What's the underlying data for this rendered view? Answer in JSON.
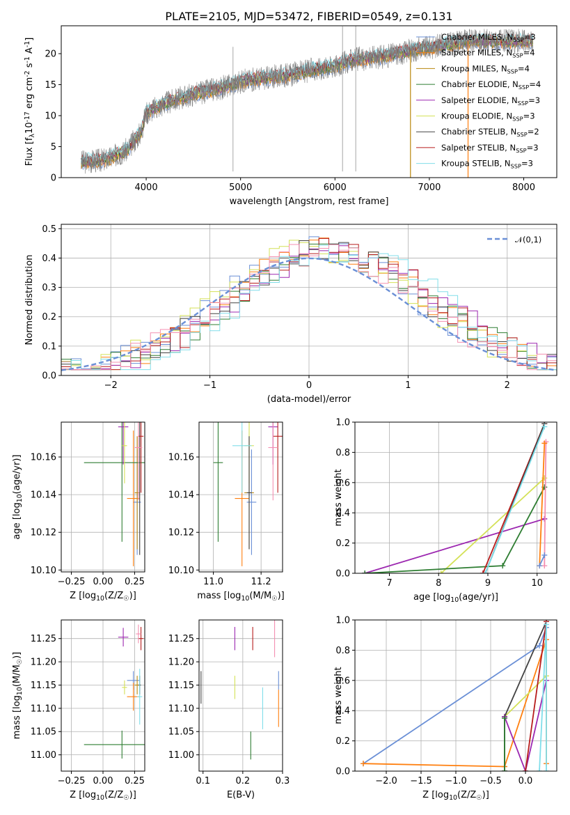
{
  "chart_data": [
    {
      "type": "line",
      "title": "PLATE=2105, MJD=53472, FIBERID=0549, z=0.131",
      "xlabel": "wavelength [Angstrom, rest frame]",
      "ylabel": "Flux [f$_\\lambda$10$^{-17}$ erg cm$^{-2}$ s$^{-1}$ A$^{-1}$]",
      "xlim": [
        3100,
        8350
      ],
      "ylim": [
        0,
        24.5
      ],
      "xticks": [
        4000,
        5000,
        6000,
        7000,
        8000
      ],
      "yticks": [
        0,
        5,
        10,
        15,
        20
      ],
      "grid": false,
      "legend_position": "top-right",
      "data_color": "#808080",
      "series": [
        {
          "name": "Chabrier MILES, N$_{SSP}$=3",
          "color": "#6a8fd6"
        },
        {
          "name": "Salpeter MILES, N$_{SSP}$=4",
          "color": "#ff7f0e"
        },
        {
          "name": "Kroupa MILES, N$_{SSP}$=4",
          "color": "#b8860b"
        },
        {
          "name": "Chabrier ELODIE, N$_{SSP}$=4",
          "color": "#2e7d32"
        },
        {
          "name": "Salpeter ELODIE, N$_{SSP}$=3",
          "color": "#9c27b0"
        },
        {
          "name": "Kroupa ELODIE, N$_{SSP}$=3",
          "color": "#d4e157"
        },
        {
          "name": "Chabrier STELIB, N$_{SSP}$=2",
          "color": "#424242"
        },
        {
          "name": "Salpeter STELIB, N$_{SSP}$=3",
          "color": "#b71c1c"
        },
        {
          "name": "Kroupa STELIB, N$_{SSP}$=3",
          "color": "#80deea"
        }
      ],
      "continuum": {
        "x": [
          3300,
          3500,
          3600,
          3700,
          3800,
          3900,
          3950,
          4000,
          4200,
          4500,
          4800,
          5000,
          5200,
          5500,
          5800,
          6000,
          6200,
          6500,
          6800,
          7000,
          7200,
          7400
        ],
        "y": [
          2.5,
          2.8,
          3.0,
          3.8,
          4.5,
          6.5,
          7.5,
          10.5,
          12.0,
          13.5,
          14.5,
          15.5,
          16.0,
          16.5,
          17.5,
          18.0,
          19.0,
          19.5,
          20.5,
          21.0,
          21.5,
          22.0
        ]
      }
    },
    {
      "type": "step",
      "xlabel": "(data-model)/error",
      "ylabel": "Normed distribution",
      "xlim": [
        -2.5,
        2.5
      ],
      "ylim": [
        0,
        0.515
      ],
      "xticks": [
        -2,
        -1,
        0,
        1,
        2
      ],
      "yticks": [
        0.0,
        0.1,
        0.2,
        0.3,
        0.4,
        0.5
      ],
      "grid": true,
      "legend_position": "top-right",
      "reference_curve": {
        "name": "$\\mathcal{N}(0,1)$",
        "mean": 0,
        "sigma": 1,
        "color": "#6a8fd6"
      },
      "bin_width": 0.1,
      "peak_values": [
        0.49,
        0.45,
        0.47,
        0.46
      ]
    },
    {
      "type": "scatter",
      "xlabel": "Z [log$_{10}$(Z/Z$_\\odot$)]",
      "ylabel": "age  [log$_{10}$(age/yr)]",
      "xlim": [
        -0.33,
        0.33
      ],
      "ylim": [
        10.099,
        10.1785
      ],
      "xticks": [
        -0.25,
        0.0,
        0.25
      ],
      "yticks": [
        10.1,
        10.12,
        10.14,
        10.16
      ],
      "grid": true,
      "points": [
        {
          "x": 0.27,
          "y": 10.136,
          "xerr": 0.03,
          "yerr": 0.028,
          "color": "#6a8fd6"
        },
        {
          "x": 0.24,
          "y": 10.138,
          "xerr": 0.05,
          "yerr": 0.036,
          "color": "#ff7f0e"
        },
        {
          "x": 0.27,
          "y": 10.141,
          "xerr": 0.02,
          "yerr": 0.03,
          "color": "#b8860b"
        },
        {
          "x": 0.15,
          "y": 10.157,
          "xerr": 0.3,
          "yerr": 0.042,
          "color": "#2e7d32"
        },
        {
          "x": 0.16,
          "y": 10.176,
          "xerr": 0.04,
          "yerr": 0.02,
          "color": "#9c27b0"
        },
        {
          "x": 0.17,
          "y": 10.166,
          "xerr": 0.02,
          "yerr": 0.02,
          "color": "#d4e157"
        },
        {
          "x": 0.29,
          "y": 10.165,
          "xerr": 0.01,
          "yerr": 0.057,
          "color": "#424242"
        },
        {
          "x": 0.3,
          "y": 10.171,
          "xerr": 0.02,
          "yerr": 0.03,
          "color": "#b71c1c"
        },
        {
          "x": 0.28,
          "y": 10.165,
          "xerr": 0.03,
          "yerr": 0.028,
          "color": "#f48fb1"
        }
      ]
    },
    {
      "type": "scatter",
      "xlabel": "mass [log$_{10}$(M/M$_\\odot$)]",
      "xlim": [
        10.94,
        11.29
      ],
      "ylim": [
        10.099,
        10.1785
      ],
      "xticks": [
        11.0,
        11.2
      ],
      "yticks": [
        10.1,
        10.12,
        10.14,
        10.16
      ],
      "grid": true,
      "points": [
        {
          "x": 11.16,
          "y": 10.136,
          "xerr": 0.02,
          "yerr": 0.028,
          "color": "#6a8fd6"
        },
        {
          "x": 11.12,
          "y": 10.138,
          "xerr": 0.03,
          "yerr": 0.036,
          "color": "#ff7f0e"
        },
        {
          "x": 11.15,
          "y": 10.141,
          "xerr": 0.02,
          "yerr": 0.03,
          "color": "#b8860b"
        },
        {
          "x": 11.02,
          "y": 10.157,
          "xerr": 0.02,
          "yerr": 0.042,
          "color": "#2e7d32"
        },
        {
          "x": 11.25,
          "y": 10.176,
          "xerr": 0.02,
          "yerr": 0.02,
          "color": "#9c27b0"
        },
        {
          "x": 11.15,
          "y": 10.166,
          "xerr": 0.02,
          "yerr": 0.02,
          "color": "#d4e157"
        },
        {
          "x": 11.15,
          "y": 10.141,
          "xerr": 0.01,
          "yerr": 0.03,
          "color": "#424242"
        },
        {
          "x": 11.27,
          "y": 10.171,
          "xerr": 0.02,
          "yerr": 0.03,
          "color": "#b71c1c"
        },
        {
          "x": 11.25,
          "y": 10.165,
          "xerr": 0.02,
          "yerr": 0.028,
          "color": "#f48fb1"
        },
        {
          "x": 11.12,
          "y": 10.166,
          "xerr": 0.04,
          "yerr": 0.025,
          "color": "#80deea"
        }
      ]
    },
    {
      "type": "line",
      "xlabel": "age  [log$_{10}$(age/yr)]",
      "ylabel": "mass weight",
      "xlim": [
        6.3,
        10.4
      ],
      "ylim": [
        0.0,
        1.0
      ],
      "xticks": [
        7,
        8,
        9,
        10
      ],
      "yticks": [
        0.0,
        0.2,
        0.4,
        0.6,
        0.8,
        1.0
      ],
      "grid": true,
      "series": [
        {
          "color": "#9c27b0",
          "x": [
            6.5,
            10.15
          ],
          "y": [
            0.0,
            0.36
          ]
        },
        {
          "color": "#d4e157",
          "x": [
            8.05,
            10.15
          ],
          "y": [
            0.0,
            0.63
          ]
        },
        {
          "color": "#2e7d32",
          "x": [
            6.5,
            9.3,
            10.15
          ],
          "y": [
            0.0,
            0.05,
            0.57
          ]
        },
        {
          "color": "#b71c1c",
          "x": [
            8.9,
            10.15
          ],
          "y": [
            0.0,
            0.99
          ]
        },
        {
          "color": "#424242",
          "x": [
            8.95,
            10.15
          ],
          "y": [
            0.0,
            0.99
          ]
        },
        {
          "color": "#80deea",
          "x": [
            8.95,
            10.15
          ],
          "y": [
            0.0,
            0.97
          ]
        },
        {
          "color": "#f48fb1",
          "x": [
            10.15,
            10.18
          ],
          "y": [
            0.05,
            0.87
          ]
        },
        {
          "color": "#ff7f0e",
          "x": [
            10.05,
            10.15
          ],
          "y": [
            0.05,
            0.86
          ]
        },
        {
          "color": "#6a8fd6",
          "x": [
            10.05,
            10.15
          ],
          "y": [
            0.05,
            0.12
          ]
        }
      ]
    },
    {
      "type": "scatter",
      "xlabel": "Z [log$_{10}$(Z/Z$_\\odot$)]",
      "ylabel": "mass [log$_{10}$(M/M$_\\odot$)]",
      "xlim": [
        -0.33,
        0.33
      ],
      "ylim": [
        10.965,
        11.29
      ],
      "xticks": [
        -0.25,
        0.0,
        0.25
      ],
      "yticks": [
        11.0,
        11.05,
        11.1,
        11.15,
        11.2,
        11.25
      ],
      "grid": true,
      "points": [
        {
          "x": 0.24,
          "y": 11.16,
          "xerr": 0.05,
          "yerr": 0.02,
          "color": "#6a8fd6"
        },
        {
          "x": 0.24,
          "y": 11.125,
          "xerr": 0.05,
          "yerr": 0.03,
          "color": "#ff7f0e"
        },
        {
          "x": 0.27,
          "y": 11.15,
          "xerr": 0.02,
          "yerr": 0.02,
          "color": "#b8860b"
        },
        {
          "x": 0.15,
          "y": 11.022,
          "xerr": 0.3,
          "yerr": 0.03,
          "color": "#2e7d32"
        },
        {
          "x": 0.16,
          "y": 11.253,
          "xerr": 0.04,
          "yerr": 0.02,
          "color": "#9c27b0"
        },
        {
          "x": 0.17,
          "y": 11.145,
          "xerr": 0.02,
          "yerr": 0.015,
          "color": "#d4e157"
        },
        {
          "x": 0.29,
          "y": 11.15,
          "xerr": 0.01,
          "yerr": 0.02,
          "color": "#424242"
        },
        {
          "x": 0.3,
          "y": 11.25,
          "xerr": 0.02,
          "yerr": 0.025,
          "color": "#b71c1c"
        },
        {
          "x": 0.28,
          "y": 11.26,
          "xerr": 0.02,
          "yerr": 0.02,
          "color": "#f48fb1"
        },
        {
          "x": 0.29,
          "y": 11.125,
          "xerr": 0.02,
          "yerr": 0.06,
          "color": "#80deea"
        }
      ]
    },
    {
      "type": "scatter",
      "xlabel": "E(B-V)",
      "xlim": [
        0.09,
        0.3
      ],
      "ylim": [
        10.965,
        11.29
      ],
      "xticks": [
        0.1,
        0.2,
        0.3
      ],
      "yticks": [
        11.0,
        11.05,
        11.1,
        11.15,
        11.2,
        11.25
      ],
      "grid": true,
      "points": [
        {
          "x": 0.29,
          "y": 11.16,
          "yerr": 0.02,
          "color": "#6a8fd6"
        },
        {
          "x": 0.29,
          "y": 11.1,
          "yerr": 0.04,
          "color": "#ff7f0e"
        },
        {
          "x": 0.22,
          "y": 11.02,
          "yerr": 0.03,
          "color": "#2e7d32"
        },
        {
          "x": 0.18,
          "y": 11.25,
          "yerr": 0.025,
          "color": "#9c27b0"
        },
        {
          "x": 0.18,
          "y": 11.145,
          "yerr": 0.025,
          "color": "#d4e157"
        },
        {
          "x": 0.095,
          "y": 11.145,
          "yerr": 0.035,
          "color": "#424242"
        },
        {
          "x": 0.225,
          "y": 11.25,
          "yerr": 0.025,
          "color": "#b71c1c"
        },
        {
          "x": 0.28,
          "y": 11.25,
          "yerr": 0.04,
          "color": "#f48fb1"
        },
        {
          "x": 0.25,
          "y": 11.1,
          "yerr": 0.045,
          "color": "#80deea"
        }
      ]
    },
    {
      "type": "line",
      "xlabel": "Z [log$_{10}$(Z/Z$_\\odot$)]",
      "ylabel": "mass weight",
      "xlim": [
        -2.45,
        0.45
      ],
      "ylim": [
        0.0,
        1.0
      ],
      "xticks": [
        -2.0,
        -1.5,
        -1.0,
        -0.5,
        0.0
      ],
      "yticks": [
        0.0,
        0.2,
        0.4,
        0.6,
        0.8,
        1.0
      ],
      "grid": true,
      "series": [
        {
          "color": "#6a8fd6",
          "x": [
            -2.33,
            0.2,
            0.3
          ],
          "y": [
            0.05,
            0.83,
            0.95
          ]
        },
        {
          "color": "#ff7f0e",
          "x": [
            -2.33,
            -0.3,
            0.3,
            0.3
          ],
          "y": [
            0.05,
            0.03,
            0.87,
            0.05
          ]
        },
        {
          "color": "#d4e157",
          "x": [
            -0.3,
            0.3
          ],
          "y": [
            0.36,
            0.63
          ]
        },
        {
          "color": "#424242",
          "x": [
            -0.3,
            -0.3,
            0.3
          ],
          "y": [
            0.0,
            0.36,
            0.99
          ]
        },
        {
          "color": "#9c27b0",
          "x": [
            -0.3,
            0.0,
            0.3
          ],
          "y": [
            0.36,
            0.0,
            0.6
          ]
        },
        {
          "color": "#b71c1c",
          "x": [
            0.0,
            0.3
          ],
          "y": [
            0.0,
            0.99
          ]
        },
        {
          "color": "#80deea",
          "x": [
            0.2,
            0.3,
            0.3
          ],
          "y": [
            0.0,
            0.97,
            0.0
          ]
        },
        {
          "color": "#2e7d32",
          "x": [
            -0.3,
            -0.3
          ],
          "y": [
            0.0,
            0.35
          ]
        }
      ]
    }
  ]
}
